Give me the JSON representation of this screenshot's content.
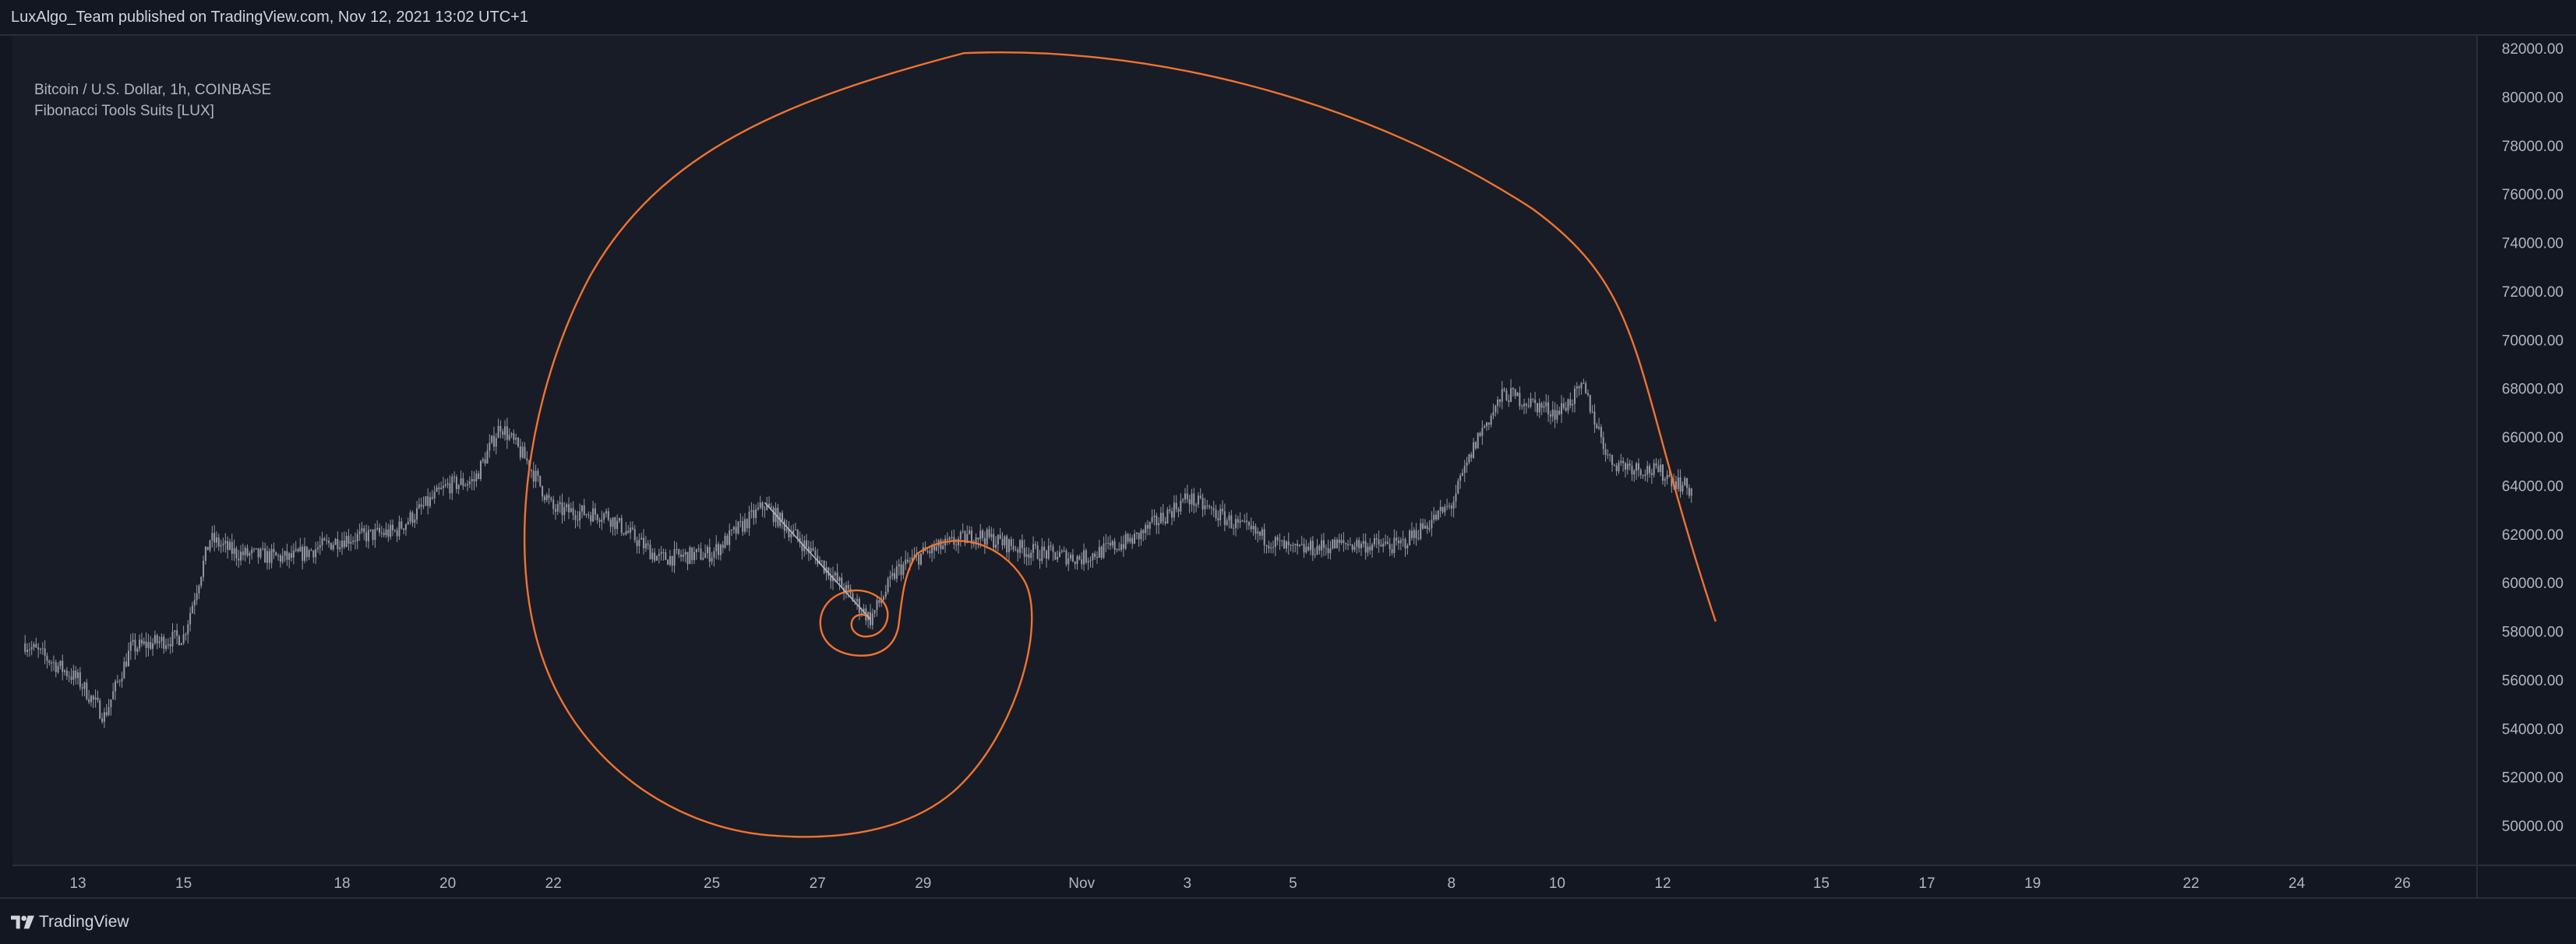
{
  "header": {
    "text": "LuxAlgo_Team published on TradingView.com, Nov 12, 2021 13:02 UTC+1"
  },
  "legend": {
    "symbol_line": "Bitcoin / U.S. Dollar, 1h, COINBASE",
    "indicator_line": "Fibonacci Tools Suits [LUX]"
  },
  "footer": {
    "brand": "TradingView",
    "logo_icon": "tradingview-logo-icon"
  },
  "colors": {
    "background": "#131722",
    "chart_background": "#181c27",
    "candles": "#9598a1",
    "spiral": "#f0732f",
    "anchor_line": "#b2b5be",
    "axis_text": "#b2b5be"
  },
  "chart_data": {
    "type": "candlestick",
    "title": "Bitcoin / U.S. Dollar, 1h, COINBASE",
    "indicator": "Fibonacci Tools Suits [LUX]",
    "ylim": [
      48700,
      82600
    ],
    "y_ticks": [
      "82000.00",
      "80000.00",
      "78000.00",
      "76000.00",
      "74000.00",
      "72000.00",
      "70000.00",
      "68000.00",
      "66000.00",
      "64000.00",
      "62000.00",
      "60000.00",
      "58000.00",
      "56000.00",
      "54000.00",
      "52000.00",
      "50000.00"
    ],
    "x_ticks": [
      "13",
      "15",
      "18",
      "20",
      "22",
      "25",
      "27",
      "29",
      "Nov",
      "3",
      "5",
      "8",
      "10",
      "12",
      "15",
      "17",
      "19",
      "22",
      "24",
      "26"
    ],
    "price_path": [
      [
        "Oct 12",
        57500
      ],
      [
        "Oct 13",
        56000
      ],
      [
        "Oct 13 12:00",
        54500
      ],
      [
        "Oct 14",
        57300
      ],
      [
        "Oct 15",
        57800
      ],
      [
        "Oct 15 12:00",
        61800
      ],
      [
        "Oct 16",
        61200
      ],
      [
        "Oct 17",
        61000
      ],
      [
        "Oct 18",
        61800
      ],
      [
        "Oct 19",
        62100
      ],
      [
        "Oct 20",
        64000
      ],
      [
        "Oct 20 12:00",
        64200
      ],
      [
        "Oct 21",
        66500
      ],
      [
        "Oct 21 12:00",
        65000
      ],
      [
        "Oct 22",
        63000
      ],
      [
        "Oct 23",
        62800
      ],
      [
        "Oct 24",
        61000
      ],
      [
        "Oct 25",
        61200
      ],
      [
        "Oct 26",
        63200
      ],
      [
        "Oct 27",
        61000
      ],
      [
        "Oct 28",
        58500
      ],
      [
        "Oct 28 12:00",
        60500
      ],
      [
        "Oct 29",
        61200
      ],
      [
        "Oct 30",
        62000
      ],
      [
        "Oct 31",
        61300
      ],
      [
        "Nov 1",
        61000
      ],
      [
        "Nov 2",
        61800
      ],
      [
        "Nov 3",
        63500
      ],
      [
        "Nov 4",
        62300
      ],
      [
        "Nov 5",
        61300
      ],
      [
        "Nov 6",
        61600
      ],
      [
        "Nov 7",
        61500
      ],
      [
        "Nov 8",
        63200
      ],
      [
        "Nov 8 12:00",
        66000
      ],
      [
        "Nov 9",
        67800
      ],
      [
        "Nov 10",
        67000
      ],
      [
        "Nov 10 12:00",
        68000
      ],
      [
        "Nov 11",
        65000
      ],
      [
        "Nov 12",
        64500
      ],
      [
        "Nov 12 13:00",
        63800
      ]
    ],
    "fibonacci_spiral": {
      "anchor_start": [
        "Oct 26",
        63300
      ],
      "anchor_end": [
        "Oct 28",
        58500
      ],
      "curve_top": 81800,
      "curve_bottom": 49600,
      "curve_end": [
        "Nov 13",
        58400
      ]
    }
  }
}
